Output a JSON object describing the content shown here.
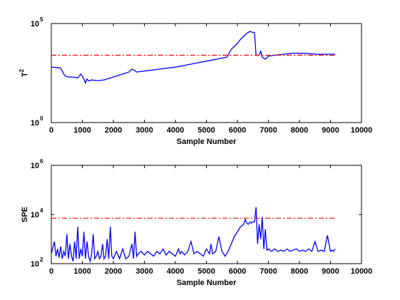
{
  "figure": {
    "background": "#ffffff",
    "series_color": "#0000ff",
    "threshold_color": "#ff0000"
  },
  "chart_data": [
    {
      "type": "line",
      "title": "",
      "xlabel": "Sample Number",
      "ylabel": "T",
      "ylabel_sup": "2",
      "xlim": [
        0,
        10000
      ],
      "ylim_log10": [
        0,
        5
      ],
      "yscale": "log",
      "x_ticks": [
        0,
        1000,
        2000,
        3000,
        4000,
        5000,
        6000,
        7000,
        8000,
        9000,
        10000
      ],
      "x_tick_labels": [
        "0",
        "1000",
        "2000",
        "3000",
        "4000",
        "5000",
        "6000",
        "7000",
        "8000",
        "9000",
        "10000"
      ],
      "y_ticks_log10": [
        0,
        5
      ],
      "y_tick_labels": [
        {
          "base": "10",
          "exp": "0"
        },
        {
          "base": "10",
          "exp": "5"
        }
      ],
      "grid": false,
      "series": [
        {
          "style": "solid",
          "color": "#0000ff",
          "x": [
            0,
            300,
            350,
            400,
            450,
            550,
            700,
            850,
            950,
            1050,
            1100,
            1150,
            1200,
            1300,
            1500,
            1700,
            1900,
            2100,
            2300,
            2500,
            2600,
            2700,
            2750,
            3000,
            3500,
            4000,
            4500,
            5000,
            5500,
            5650,
            5700,
            5750,
            5800,
            5900,
            6000,
            6100,
            6200,
            6300,
            6400,
            6500,
            6550,
            6600,
            6700,
            6750,
            6800,
            6900,
            7000,
            7200,
            7500,
            7800,
            8000,
            8300,
            8600,
            8900,
            9150
          ],
          "log10_y": [
            2.8,
            2.75,
            2.6,
            2.45,
            2.35,
            2.3,
            2.3,
            2.25,
            2.45,
            2.2,
            2.0,
            2.2,
            2.1,
            2.15,
            2.12,
            2.15,
            2.25,
            2.35,
            2.45,
            2.55,
            2.7,
            2.62,
            2.55,
            2.6,
            2.7,
            2.8,
            2.95,
            3.1,
            3.25,
            3.3,
            3.4,
            3.55,
            3.7,
            3.85,
            4.0,
            4.2,
            4.35,
            4.5,
            4.6,
            4.55,
            4.55,
            3.4,
            3.4,
            3.6,
            3.3,
            3.2,
            3.35,
            3.4,
            3.45,
            3.5,
            3.5,
            3.48,
            3.45,
            3.45,
            3.45
          ]
        },
        {
          "style": "dashdot",
          "color": "#ff0000",
          "x": [
            0,
            9150
          ],
          "log10_y": [
            3.4,
            3.4
          ]
        }
      ]
    },
    {
      "type": "line",
      "title": "",
      "xlabel": "Sample Number",
      "ylabel": "SPE",
      "xlim": [
        0,
        10000
      ],
      "ylim_log10": [
        2,
        6
      ],
      "yscale": "log",
      "x_ticks": [
        0,
        1000,
        2000,
        3000,
        4000,
        5000,
        6000,
        7000,
        8000,
        9000,
        10000
      ],
      "x_tick_labels": [
        "0",
        "1000",
        "2000",
        "3000",
        "4000",
        "5000",
        "6000",
        "7000",
        "8000",
        "9000",
        "10000"
      ],
      "y_ticks_log10": [
        2,
        4,
        6
      ],
      "y_tick_labels": [
        {
          "base": "10",
          "exp": "2"
        },
        {
          "base": "10",
          "exp": "4"
        },
        {
          "base": "10",
          "exp": "6"
        }
      ],
      "grid": false,
      "series": [
        {
          "style": "solid",
          "color": "#0000ff",
          "x": [
            0,
            100,
            150,
            200,
            250,
            300,
            350,
            400,
            450,
            500,
            550,
            600,
            650,
            700,
            750,
            800,
            850,
            900,
            950,
            1000,
            1050,
            1100,
            1150,
            1200,
            1250,
            1300,
            1350,
            1400,
            1450,
            1500,
            1550,
            1600,
            1650,
            1700,
            1750,
            1800,
            1850,
            1900,
            1950,
            2000,
            2100,
            2200,
            2300,
            2400,
            2500,
            2600,
            2650,
            2700,
            2750,
            2800,
            2900,
            3000,
            3100,
            3200,
            3300,
            3400,
            3500,
            3600,
            3700,
            3800,
            3900,
            4000,
            4100,
            4150,
            4200,
            4300,
            4400,
            4500,
            4600,
            4700,
            4800,
            4900,
            5000,
            5100,
            5150,
            5200,
            5300,
            5400,
            5500,
            5600,
            5700,
            5800,
            5900,
            6000,
            6100,
            6200,
            6250,
            6300,
            6350,
            6400,
            6450,
            6500,
            6550,
            6600,
            6650,
            6700,
            6750,
            6800,
            6850,
            6900,
            6950,
            7000,
            7100,
            7200,
            7300,
            7400,
            7500,
            7600,
            7700,
            7800,
            7900,
            8000,
            8100,
            8200,
            8300,
            8400,
            8500,
            8600,
            8700,
            8800,
            8900,
            9000,
            9050,
            9100,
            9150
          ],
          "log10_y": [
            2.4,
            2.9,
            2.3,
            2.6,
            2.25,
            2.7,
            2.2,
            2.5,
            2.3,
            3.2,
            2.2,
            2.8,
            2.3,
            2.1,
            2.9,
            2.2,
            3.5,
            2.2,
            2.6,
            2.3,
            3.3,
            2.2,
            2.9,
            2.3,
            2.1,
            2.4,
            3.2,
            2.2,
            2.3,
            2.5,
            2.2,
            2.3,
            2.8,
            2.2,
            2.3,
            3.0,
            2.2,
            3.5,
            2.3,
            2.2,
            2.5,
            2.2,
            2.6,
            2.2,
            2.3,
            2.8,
            2.2,
            3.3,
            2.3,
            2.4,
            2.5,
            2.35,
            2.5,
            2.4,
            2.3,
            2.5,
            2.4,
            2.6,
            2.35,
            2.5,
            2.4,
            2.3,
            2.6,
            2.4,
            2.5,
            2.35,
            2.5,
            2.9,
            2.4,
            2.5,
            2.4,
            2.3,
            2.6,
            2.4,
            2.8,
            2.4,
            2.5,
            3.1,
            2.5,
            2.3,
            2.5,
            2.8,
            3.1,
            3.3,
            3.5,
            3.6,
            3.8,
            3.65,
            3.6,
            3.7,
            3.65,
            3.7,
            3.7,
            4.3,
            2.8,
            3.6,
            3.0,
            3.9,
            2.6,
            3.4,
            2.55,
            2.6,
            2.5,
            2.6,
            2.5,
            2.55,
            2.5,
            2.6,
            2.5,
            2.55,
            2.6,
            2.5,
            2.55,
            2.5,
            2.6,
            2.5,
            2.9,
            2.5,
            2.55,
            2.5,
            3.15,
            2.5,
            2.55,
            2.5,
            2.6,
            3.2,
            2.55,
            2.6
          ]
        },
        {
          "style": "dashdot",
          "color": "#ff0000",
          "x": [
            0,
            9150
          ],
          "log10_y": [
            3.85,
            3.85
          ]
        }
      ]
    }
  ]
}
